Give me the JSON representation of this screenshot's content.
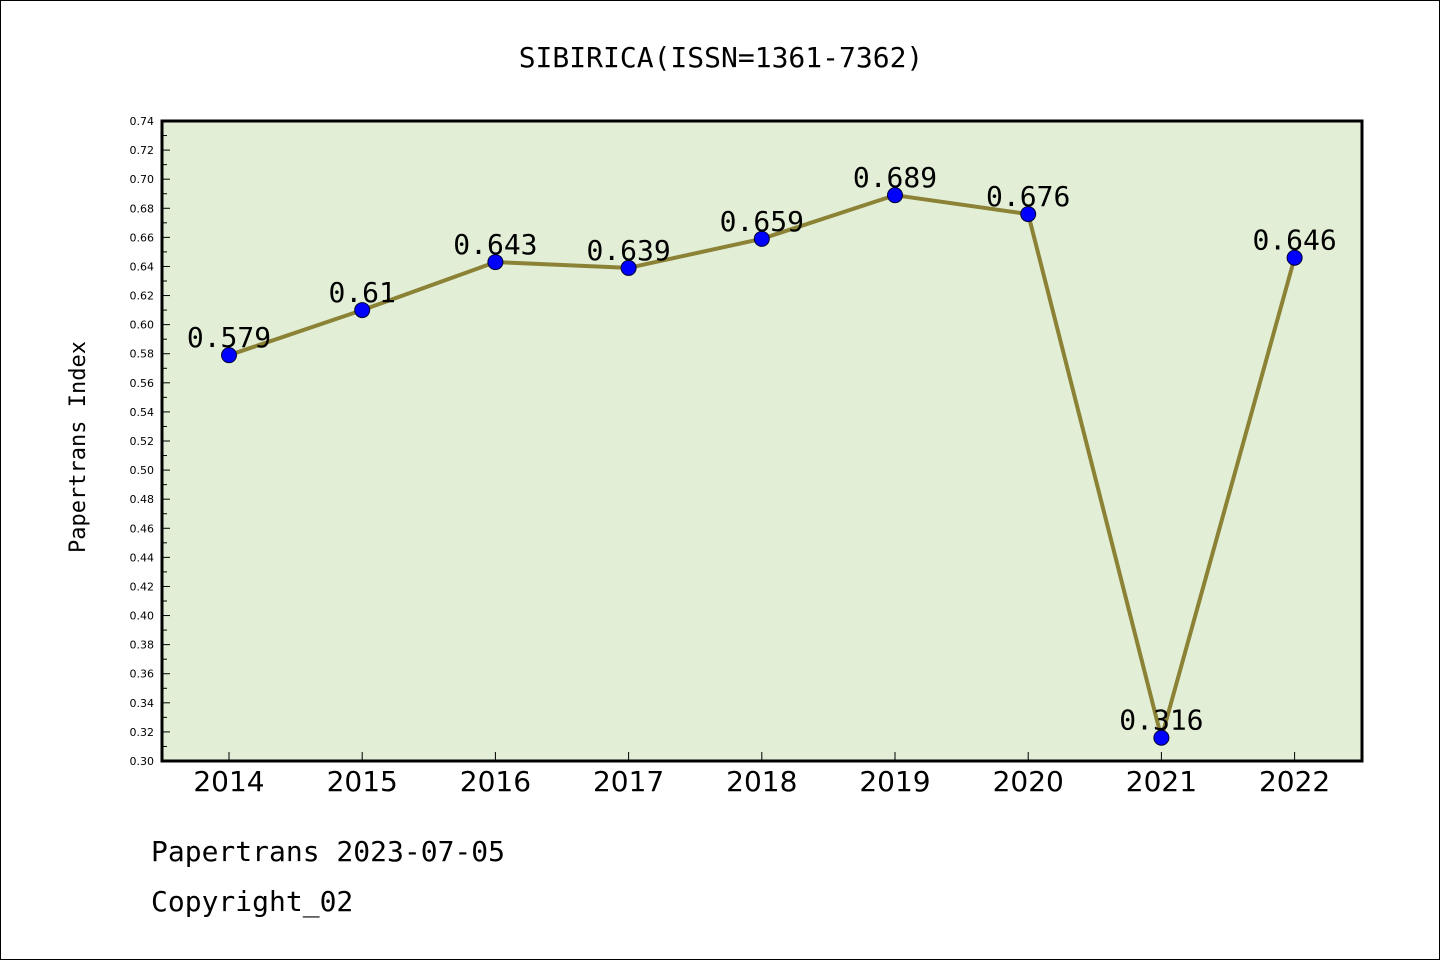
{
  "chart_data": {
    "type": "line",
    "title": "SIBIRICA(ISSN=1361-7362)",
    "ylabel": "Papertrans Index",
    "xlabel": "",
    "categories": [
      "2014",
      "2015",
      "2016",
      "2017",
      "2018",
      "2019",
      "2020",
      "2021",
      "2022"
    ],
    "values": [
      0.579,
      0.61,
      0.643,
      0.639,
      0.659,
      0.689,
      0.676,
      0.316,
      0.646
    ],
    "data_labels": [
      "0.579",
      "0.61",
      "0.643",
      "0.639",
      "0.659",
      "0.689",
      "0.676",
      "0.316",
      "0.646"
    ],
    "ylim": [
      0.3,
      0.74
    ],
    "yticks": [
      "0.30",
      "0.32",
      "0.34",
      "0.36",
      "0.38",
      "0.40",
      "0.42",
      "0.44",
      "0.46",
      "0.48",
      "0.50",
      "0.52",
      "0.54",
      "0.56",
      "0.58",
      "0.60",
      "0.62",
      "0.64",
      "0.66",
      "0.68",
      "0.70",
      "0.72",
      "0.74"
    ],
    "grid": false,
    "legend": "none",
    "colors": {
      "plot_background": "#e2efd6",
      "line": "#8b8236",
      "marker": "#0000ff"
    }
  },
  "footer": {
    "line1": "Papertrans 2023-07-05",
    "line2": "Copyright_02"
  }
}
